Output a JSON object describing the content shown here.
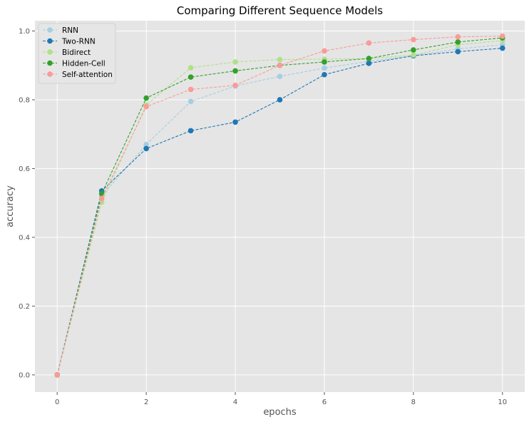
{
  "chart_data": {
    "type": "line",
    "title": "Comparing Different Sequence Models",
    "xlabel": "epochs",
    "ylabel": "accuracy",
    "x": [
      0,
      1,
      2,
      3,
      4,
      5,
      6,
      7,
      8,
      9,
      10
    ],
    "xlim": [
      -0.5,
      10.5
    ],
    "ylim": [
      -0.05,
      1.03
    ],
    "xticks": [
      0,
      2,
      4,
      6,
      8,
      10
    ],
    "yticks": [
      0.0,
      0.2,
      0.4,
      0.6,
      0.8,
      1.0
    ],
    "xtick_labels": [
      "0",
      "2",
      "4",
      "6",
      "8",
      "10"
    ],
    "ytick_labels": [
      "0.0",
      "0.2",
      "0.4",
      "0.6",
      "0.8",
      "1.0"
    ],
    "grid": true,
    "legend_position": "top-left",
    "background_color": "#e5e5e5",
    "series": [
      {
        "name": "RNN",
        "color": "#a6cee3",
        "values": [
          0.0,
          0.52,
          0.67,
          0.795,
          0.84,
          0.868,
          0.892,
          0.912,
          0.928,
          0.948,
          0.96
        ]
      },
      {
        "name": "Two-RNN",
        "color": "#1f78b4",
        "values": [
          0.0,
          0.535,
          0.658,
          0.71,
          0.735,
          0.8,
          0.873,
          0.906,
          0.928,
          0.94,
          0.95
        ]
      },
      {
        "name": "Bidirect",
        "color": "#b2df8a",
        "values": [
          0.0,
          0.502,
          0.785,
          0.893,
          0.91,
          0.917,
          0.918,
          0.92,
          0.93,
          0.96,
          0.972
        ]
      },
      {
        "name": "Hidden-Cell",
        "color": "#33a02c",
        "values": [
          0.0,
          0.527,
          0.805,
          0.866,
          0.884,
          0.9,
          0.91,
          0.92,
          0.945,
          0.968,
          0.98
        ]
      },
      {
        "name": "Self-attention",
        "color": "#fb9a99",
        "values": [
          0.0,
          0.513,
          0.78,
          0.83,
          0.842,
          0.9,
          0.942,
          0.965,
          0.975,
          0.983,
          0.985
        ]
      }
    ]
  }
}
